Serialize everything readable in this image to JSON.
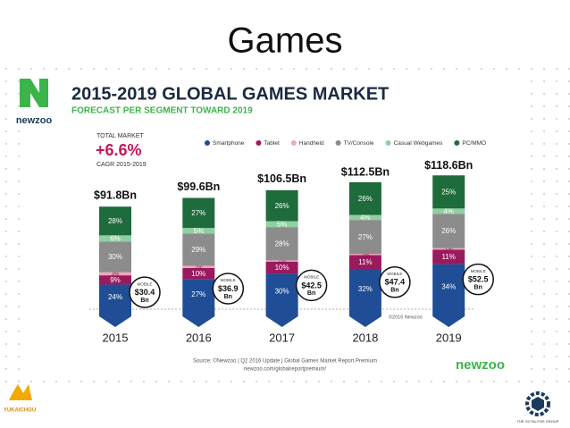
{
  "slide_title": "Games",
  "chart_data": {
    "type": "bar",
    "stacked": true,
    "title": "2015-2019 GLOBAL GAMES MARKET",
    "subtitle": "FORECAST PER SEGMENT TOWARD 2019",
    "brand": "newzoo",
    "total_market": {
      "label": "TOTAL MARKET",
      "value": 6.6,
      "value_label": "+6.6%",
      "note": "CAGR 2015-2019"
    },
    "categories": [
      "2015",
      "2016",
      "2017",
      "2018",
      "2019"
    ],
    "totals": {
      "values": [
        91.8,
        99.6,
        106.5,
        112.5,
        118.6
      ],
      "value_labels": [
        "$91.8Bn",
        "$99.6Bn",
        "$106.5Bn",
        "$112.5Bn",
        "$118.6Bn"
      ]
    },
    "series": [
      {
        "name": "Smartphone",
        "color": "#1f4e96",
        "values": [
          24,
          27,
          30,
          32,
          34
        ],
        "value_labels": [
          "24%",
          "27%",
          "30%",
          "32%",
          "34%"
        ]
      },
      {
        "name": "Tablet",
        "color": "#9b1a5e",
        "values": [
          9,
          10,
          10,
          11,
          11
        ],
        "value_labels": [
          "9%",
          "10%",
          "10%",
          "11%",
          "11%"
        ]
      },
      {
        "name": "Handheld",
        "color": "#f0a6bd",
        "values": [
          3,
          2,
          1,
          1,
          1
        ],
        "value_labels": [
          "3%",
          "2%",
          "1%",
          "1%",
          "1%"
        ]
      },
      {
        "name": "TV/Console",
        "color": "#8c8c8c",
        "values": [
          30,
          29,
          28,
          27,
          26
        ],
        "value_labels": [
          "30%",
          "29%",
          "28%",
          "27%",
          "26%"
        ]
      },
      {
        "name": "Casual Webgames",
        "color": "#8fcfa0",
        "values": [
          6,
          5,
          5,
          4,
          4
        ],
        "value_labels": [
          "6%",
          "5%",
          "5%",
          "4%",
          "4%"
        ]
      },
      {
        "name": "PC/MMO",
        "color": "#1e6b3c",
        "values": [
          28,
          27,
          26,
          26,
          25
        ],
        "value_labels": [
          "28%",
          "27%",
          "26%",
          "26%",
          "25%"
        ]
      }
    ],
    "mobile": {
      "label": "MOBILE",
      "unit": "Bn",
      "values": [
        30.4,
        36.9,
        42.5,
        47.4,
        52.5
      ],
      "value_labels": [
        "$30.4",
        "$36.9",
        "$42.5",
        "$47.4",
        "$52.5"
      ]
    },
    "legend": "top",
    "copyright": "©2016 Newzoo",
    "source": [
      "Source: ©Newzoo | Q2 2016 Update | Global Games Market Report Premium",
      "newzoo.com/globalreportpremium/"
    ]
  },
  "logos": {
    "left": "YUKAICHOU",
    "right": "THE OCTALYSIS GROUP"
  }
}
